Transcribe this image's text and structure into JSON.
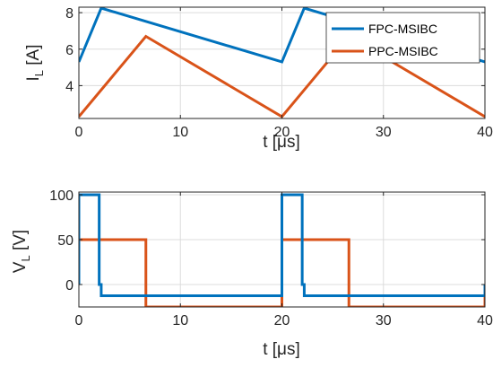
{
  "chart_data": [
    {
      "type": "line",
      "ylabel": "I",
      "ylabel_sub": "L",
      "ylabel_unit": " [A]",
      "xlabel": "t [",
      "xlabel_unit": "s]",
      "xlabel_mu": "μ",
      "xlim": [
        0,
        40
      ],
      "ylim": [
        2.2,
        8.3
      ],
      "xticks": [
        0,
        10,
        20,
        30,
        40
      ],
      "yticks": [
        4,
        6,
        8
      ],
      "grid": true,
      "legend": "top-right",
      "colors": [
        "#0072BD",
        "#D95319"
      ],
      "series": [
        {
          "name": "FPC-MSIBC",
          "x": [
            0,
            2.2,
            20,
            22.2,
            40
          ],
          "y": [
            5.3,
            8.25,
            5.3,
            8.25,
            5.3
          ]
        },
        {
          "name": "PPC-MSIBC",
          "x": [
            0,
            6.6,
            20,
            26.6,
            40
          ],
          "y": [
            2.3,
            6.7,
            2.3,
            6.7,
            2.3
          ]
        }
      ]
    },
    {
      "type": "line",
      "ylabel": "V",
      "ylabel_sub": "L",
      "ylabel_unit": " [V]",
      "xlabel": "t [",
      "xlabel_unit": "s]",
      "xlabel_mu": "μ",
      "xlim": [
        0,
        40
      ],
      "ylim": [
        -25,
        103
      ],
      "xticks": [
        0,
        10,
        20,
        30,
        40
      ],
      "yticks": [
        0,
        50,
        100
      ],
      "grid": true,
      "colors": [
        "#0072BD",
        "#D95319"
      ],
      "series": [
        {
          "name": "FPC-MSIBC",
          "x": [
            0,
            0,
            2,
            2,
            2.2,
            2.2,
            20,
            20,
            22,
            22,
            22.2,
            22.2,
            40,
            40
          ],
          "y": [
            0,
            100,
            100,
            0,
            0,
            -12.5,
            -12.5,
            100,
            100,
            0,
            0,
            -12.5,
            -12.5,
            0
          ]
        },
        {
          "name": "PPC-MSIBC",
          "x": [
            0,
            0,
            6.6,
            6.6,
            20,
            20,
            26.6,
            26.6,
            40,
            40
          ],
          "y": [
            0,
            50,
            50,
            -25,
            -25,
            50,
            50,
            -25,
            -25,
            0
          ]
        }
      ]
    }
  ]
}
